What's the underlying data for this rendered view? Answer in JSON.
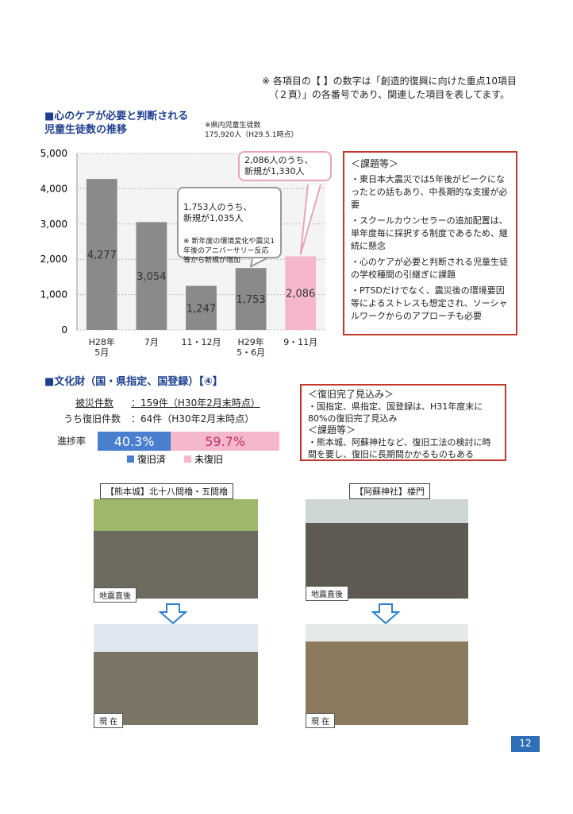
{
  "note": "※ 各項目の【 】の数字は「創造的復興に向けた重点10項目\n（２頁）」の各番号であり、関連した項目を表してます。",
  "section1": {
    "title": "■心のケアが必要と判断される\n児童生徒数の推移",
    "chart_note": "※県内児童生徒数\n175,920人（H29.5.1時点）",
    "callouts": [
      "2,086人のうち、\n新規が1,330人",
      "1,753人のうち、\n新規が1,035人",
      "※ 新年度の環境変化や震災1年後のアニバーサリー反応等から新規が増加"
    ],
    "box_title": "＜課題等＞",
    "box_items": [
      "・東日本大震災では5年後がピークになったとの話もあり、中長期的な支援が必要",
      "・スクールカウンセラーの追加配置は、単年度毎に採択する制度であるため、継続に懸念",
      "・心のケアが必要と判断される児童生徒の学校種間の引継ぎに課題",
      "・PTSDだけでなく、震災後の環境要因等によるストレスも想定され、ソーシャルワークからのアプローチも必要"
    ]
  },
  "chart_data": {
    "type": "bar",
    "categories": [
      "H28年\n5月",
      "7月",
      "11・12月",
      "H29年\n5・6月",
      "9・11月"
    ],
    "values": [
      4277,
      3054,
      1247,
      1753,
      2086
    ],
    "value_labels": [
      "4,277",
      "3,054",
      "1,247",
      "1,753",
      "2,086"
    ],
    "colors": [
      "#8a8a8a",
      "#8a8a8a",
      "#8a8a8a",
      "#8a8a8a",
      "#f5b8cb"
    ],
    "ylim": [
      0,
      5000
    ],
    "yticks": [
      0,
      {
        "value": 1000,
        "label": "1,000"
      },
      {
        "value": 2000,
        "label": "2,000"
      },
      {
        "value": 3000,
        "label": "3,000"
      },
      {
        "value": 4000,
        "label": "4,000"
      },
      {
        "value": 5000,
        "label": "5,000"
      }
    ],
    "grid": true
  },
  "section2": {
    "title": "■文化財（国・県指定、国登録）【④】",
    "rows": [
      [
        "被災件数",
        "：159件（H30年2月末時点）"
      ],
      [
        "うち復旧件数",
        "：64件（H30年2月末時点）"
      ]
    ],
    "progress": {
      "label": "進捗率",
      "segments": [
        {
          "name": "復旧済",
          "value": 40.3,
          "value_label": "40.3%",
          "color": "#4a7fd0"
        },
        {
          "name": "未復旧",
          "value": 59.7,
          "value_label": "59.7%",
          "color": "#f5b8cb"
        }
      ]
    },
    "box": [
      "＜復旧完了見込み＞",
      "・国指定、県指定、国登録は、H31年度末に80%の復旧完了見込み",
      "＜課題等＞",
      "・熊本城、阿蘇神社など、復旧工法の検討に時間を要し、復旧に長期間かかるものもある"
    ]
  },
  "photos": [
    {
      "caption": "【熊本城】北十八間櫓・五間櫓",
      "before": "地震直後",
      "after": "現 在"
    },
    {
      "caption": "【阿蘇神社】楼門",
      "before": "地震直後",
      "after": "現 在"
    }
  ],
  "page_number": "12"
}
